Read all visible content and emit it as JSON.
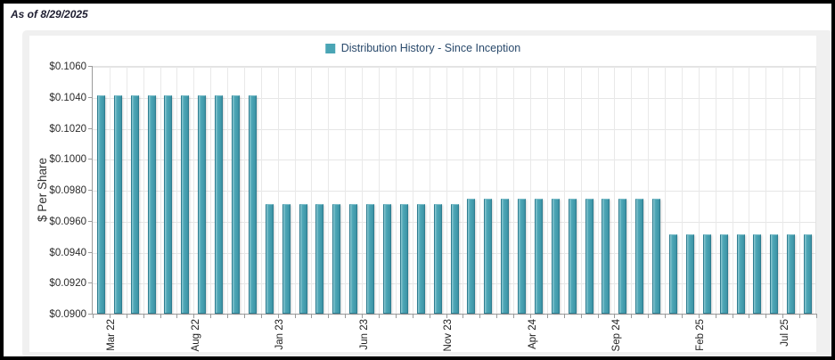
{
  "header": {
    "as_of": "As of 8/29/2025"
  },
  "legend": {
    "label": "Distribution History - Since Inception",
    "swatch_color": "#4aa5b5"
  },
  "colors": {
    "bar_fill": "#4aa5b5",
    "bar_border": "#2e7d90",
    "panel_bg": "#f0f0f0",
    "grid_line": "#e6e6e6",
    "axis_line": "#9a9a9a",
    "legend_text": "#29496b"
  },
  "chart_data": {
    "type": "bar",
    "title": "Distribution History - Since Inception",
    "xlabel": "",
    "ylabel": "$ Per Share",
    "ylim": [
      0.09,
      0.106
    ],
    "ytick_step": 0.002,
    "ytick_labels": [
      "$0.0900",
      "$0.0920",
      "$0.0940",
      "$0.0960",
      "$0.0980",
      "$0.1000",
      "$0.1020",
      "$0.1040",
      "$0.1060"
    ],
    "grid": true,
    "legend_position": "top-center",
    "xtick_label_every": 5,
    "shown_xtick_labels": [
      "Mar 22",
      "Aug 22",
      "Jan 23",
      "Jun 23",
      "Nov 23",
      "Apr 24",
      "Sep 24",
      "Feb 25",
      "Jul 25"
    ],
    "categories": [
      "Mar 22",
      "Apr 22",
      "May 22",
      "Jun 22",
      "Jul 22",
      "Aug 22",
      "Sep 22",
      "Oct 22",
      "Nov 22",
      "Dec 22",
      "Jan 23",
      "Feb 23",
      "Mar 23",
      "Apr 23",
      "May 23",
      "Jun 23",
      "Jul 23",
      "Aug 23",
      "Sep 23",
      "Oct 23",
      "Nov 23",
      "Dec 23",
      "Jan 24",
      "Feb 24",
      "Mar 24",
      "Apr 24",
      "May 24",
      "Jun 24",
      "Jul 24",
      "Aug 24",
      "Sep 24",
      "Oct 24",
      "Nov 24",
      "Dec 24",
      "Jan 25",
      "Feb 25",
      "Mar 25",
      "Apr 25",
      "May 25",
      "Jun 25",
      "Jul 25",
      "Aug 25",
      "Sep 25"
    ],
    "values": [
      0.1041,
      0.1041,
      0.1041,
      0.1041,
      0.1041,
      0.1041,
      0.1041,
      0.1041,
      0.1041,
      0.1041,
      0.0971,
      0.0971,
      0.0971,
      0.0971,
      0.0971,
      0.0971,
      0.0971,
      0.0971,
      0.0971,
      0.0971,
      0.0971,
      0.0971,
      0.0974,
      0.0974,
      0.0974,
      0.0974,
      0.0974,
      0.0974,
      0.0974,
      0.0974,
      0.0974,
      0.0974,
      0.0974,
      0.0974,
      0.0951,
      0.0951,
      0.0951,
      0.0951,
      0.0951,
      0.0951,
      0.0951,
      0.0951,
      0.0951
    ]
  }
}
